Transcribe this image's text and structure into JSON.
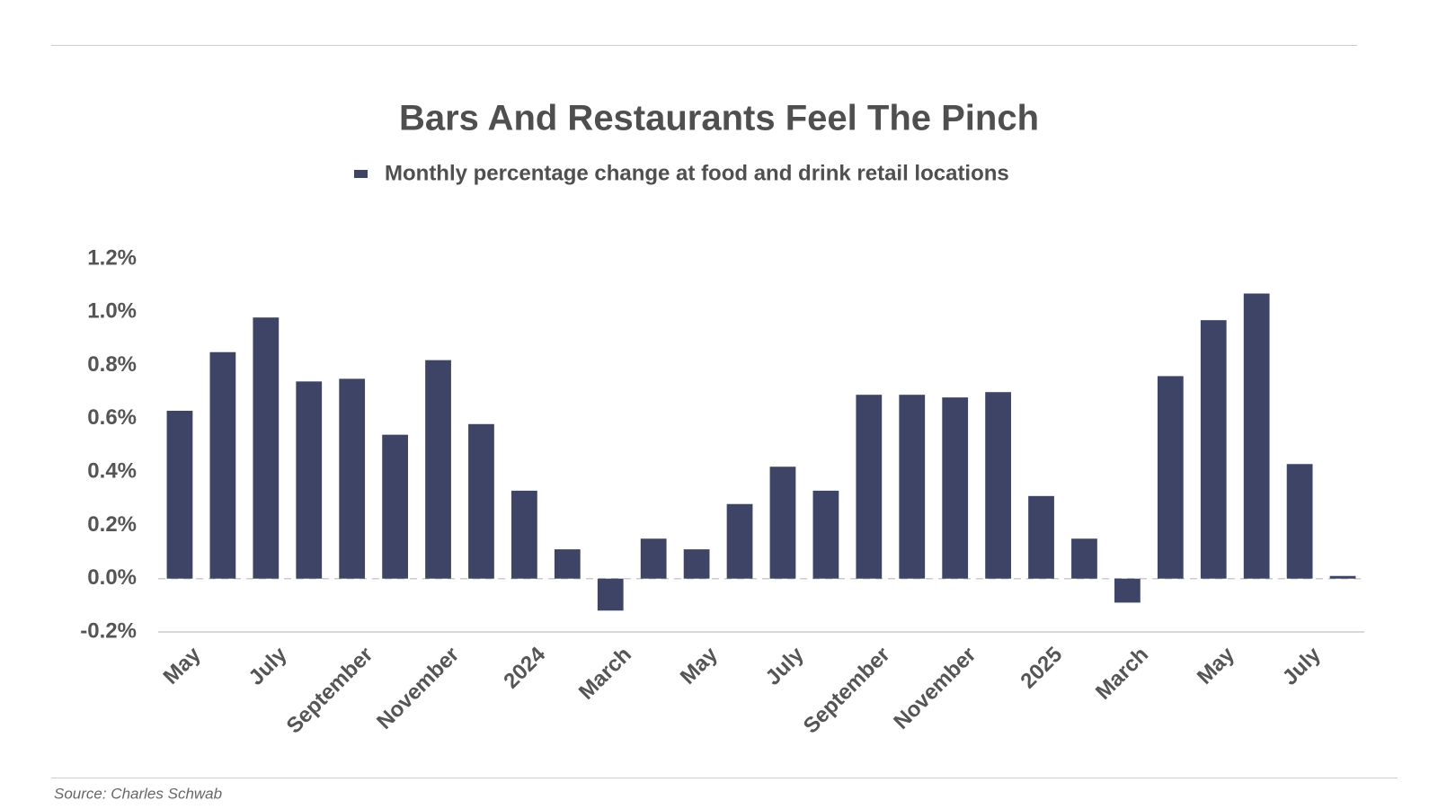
{
  "chart_data": {
    "type": "bar",
    "title": "Bars And Restaurants Feel The Pinch",
    "legend_label": "Monthly percentage change at food and drink retail locations",
    "source": "Source: Charles Schwab",
    "color": "#3d4466",
    "categories": [
      "May",
      null,
      "July",
      null,
      "September",
      null,
      "November",
      null,
      "2024",
      null,
      "March",
      null,
      "May",
      null,
      "July",
      null,
      "September",
      null,
      "November",
      null,
      "2025",
      null,
      "March",
      null,
      "May",
      null,
      "July",
      null
    ],
    "values": [
      0.63,
      0.85,
      0.98,
      0.74,
      0.75,
      0.54,
      0.82,
      0.58,
      0.33,
      0.11,
      -0.12,
      0.15,
      0.11,
      0.28,
      0.42,
      0.33,
      0.69,
      0.69,
      0.68,
      0.7,
      0.31,
      0.15,
      -0.09,
      0.76,
      0.97,
      1.07,
      0.43,
      0.01
    ],
    "ylim": [
      -0.2,
      1.2
    ],
    "yticks": [
      {
        "value": -0.2,
        "label": "-0.2%"
      },
      {
        "value": 0.0,
        "label": "0.0%"
      },
      {
        "value": 0.2,
        "label": "0.2%"
      },
      {
        "value": 0.4,
        "label": "0.4%"
      },
      {
        "value": 0.6,
        "label": "0.6%"
      },
      {
        "value": 0.8,
        "label": "0.8%"
      },
      {
        "value": 1.0,
        "label": "1.0%"
      },
      {
        "value": 1.2,
        "label": "1.2%"
      }
    ],
    "grid": false
  }
}
